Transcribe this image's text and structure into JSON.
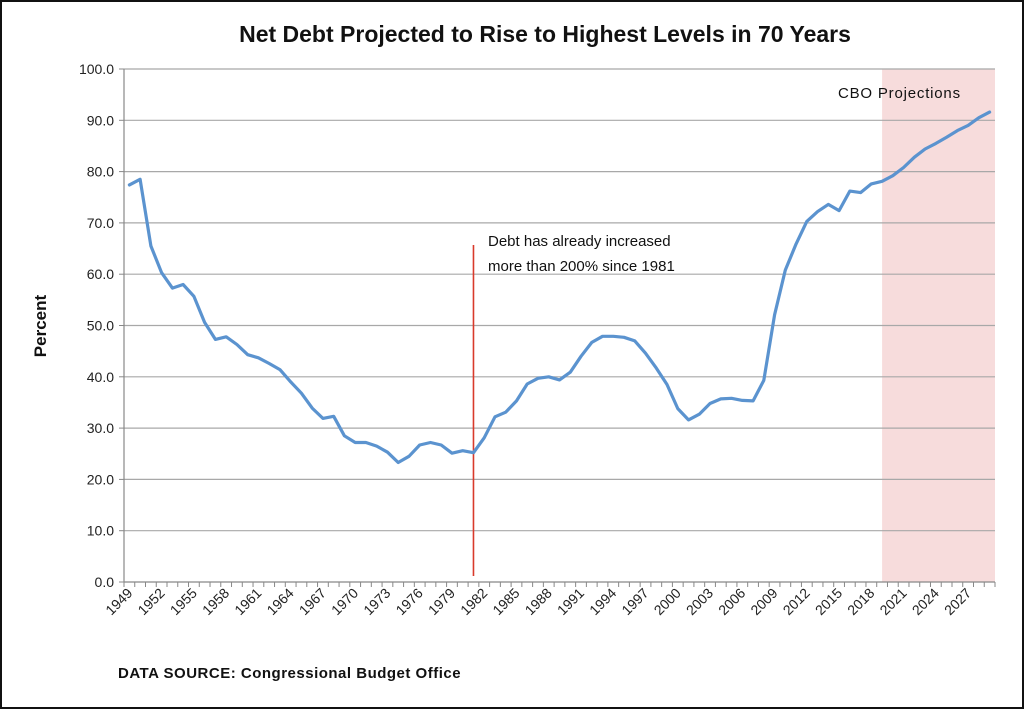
{
  "chart_data": {
    "type": "line",
    "title": "Net Debt Projected to Rise to Highest Levels in 70 Years",
    "ylabel": "Percent",
    "xlabel": "",
    "ylim": [
      0,
      100
    ],
    "yticks": [
      "0.0",
      "10.0",
      "20.0",
      "30.0",
      "40.0",
      "50.0",
      "60.0",
      "70.0",
      "80.0",
      "90.0",
      "100.0"
    ],
    "grid": true,
    "x": [
      1949,
      1950,
      1951,
      1952,
      1953,
      1954,
      1955,
      1956,
      1957,
      1958,
      1959,
      1960,
      1961,
      1962,
      1963,
      1964,
      1965,
      1966,
      1967,
      1968,
      1969,
      1970,
      1971,
      1972,
      1973,
      1974,
      1975,
      1976,
      1977,
      1978,
      1979,
      1980,
      1981,
      1982,
      1983,
      1984,
      1985,
      1986,
      1987,
      1988,
      1989,
      1990,
      1991,
      1992,
      1993,
      1994,
      1995,
      1996,
      1997,
      1998,
      1999,
      2000,
      2001,
      2002,
      2003,
      2004,
      2005,
      2006,
      2007,
      2008,
      2009,
      2010,
      2011,
      2012,
      2013,
      2014,
      2015,
      2016,
      2017,
      2018,
      2019,
      2020,
      2021,
      2022,
      2023,
      2024,
      2025,
      2026,
      2027,
      2028,
      2029
    ],
    "xtick_labels": [
      "1949",
      "1952",
      "1955",
      "1958",
      "1961",
      "1964",
      "1967",
      "1970",
      "1973",
      "1976",
      "1979",
      "1982",
      "1985",
      "1988",
      "1991",
      "1994",
      "1997",
      "2000",
      "2003",
      "2006",
      "2009",
      "2012",
      "2015",
      "2018",
      "2021",
      "2024",
      "2027"
    ],
    "series": [
      {
        "color": "#5b93cf",
        "values": [
          77.4,
          78.5,
          65.5,
          60.3,
          57.3,
          58.0,
          55.7,
          50.6,
          47.3,
          47.8,
          46.3,
          44.3,
          43.7,
          42.6,
          41.4,
          39.0,
          36.8,
          33.9,
          31.9,
          32.3,
          28.5,
          27.2,
          27.2,
          26.5,
          25.3,
          23.3,
          24.5,
          26.7,
          27.2,
          26.7,
          25.1,
          25.6,
          25.2,
          28.1,
          32.2,
          33.1,
          35.3,
          38.6,
          39.7,
          40.0,
          39.4,
          40.9,
          44.0,
          46.7,
          47.9,
          47.9,
          47.7,
          47.0,
          44.6,
          41.7,
          38.5,
          33.8,
          31.6,
          32.7,
          34.8,
          35.7,
          35.8,
          35.4,
          35.3,
          39.3,
          52.1,
          60.8,
          65.9,
          70.3,
          72.2,
          73.6,
          72.4,
          76.2,
          75.9,
          77.6,
          78.1,
          79.2,
          80.8,
          82.8,
          84.4,
          85.5,
          86.7,
          88.0,
          89.0,
          90.5,
          91.6
        ]
      }
    ],
    "annotations": {
      "marker_year": 1981,
      "marker_color": "#d93a2b",
      "marker_text_line1": "Debt has already increased",
      "marker_text_line2": "more than 200% since 1981",
      "projection_start": 2019,
      "projection_end": 2029,
      "projection_color": "#f7dcdc",
      "projection_label": "CBO Projections"
    },
    "source": "DATA SOURCE: Congressional Budget Office"
  }
}
